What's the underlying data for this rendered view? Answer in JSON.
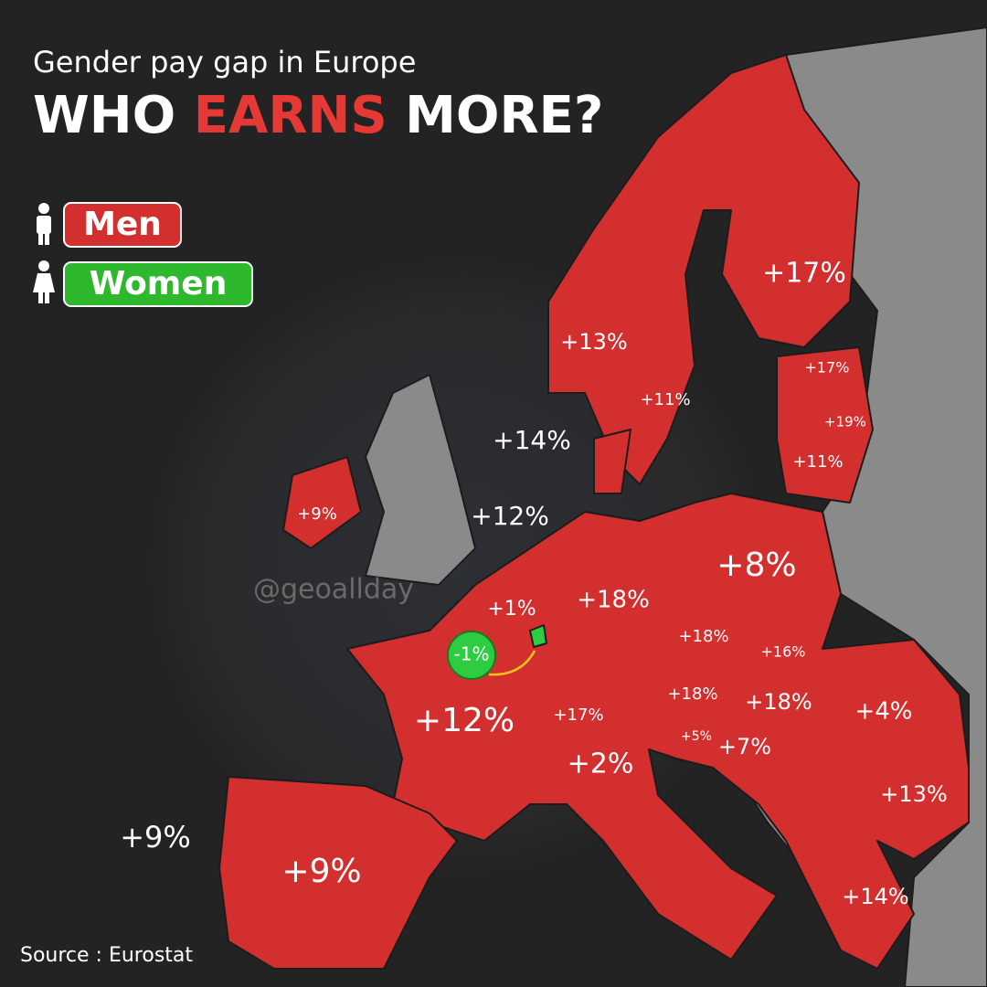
{
  "header": {
    "subtitle": "Gender pay gap in Europe",
    "title": [
      "WHO",
      "EARNS",
      "MORE?"
    ]
  },
  "legend": [
    {
      "label": "Men"
    },
    {
      "label": "Women"
    }
  ],
  "map": {
    "labels": [
      "+17%",
      "+13%",
      "+11%",
      "+17%",
      "+19%",
      "+11%",
      "+14%",
      "+12%",
      "+9%",
      "+8%",
      "+18%",
      "+1%",
      "-1%",
      "+18%",
      "+16%",
      "+18%",
      "+18%",
      "+4%",
      "+12%",
      "+17%",
      "+5%",
      "+7%",
      "+2%",
      "+13%",
      "+9%",
      "+9%",
      "+14%"
    ]
  },
  "watermark": "@geoallday",
  "source": "Source : Eurostat"
}
